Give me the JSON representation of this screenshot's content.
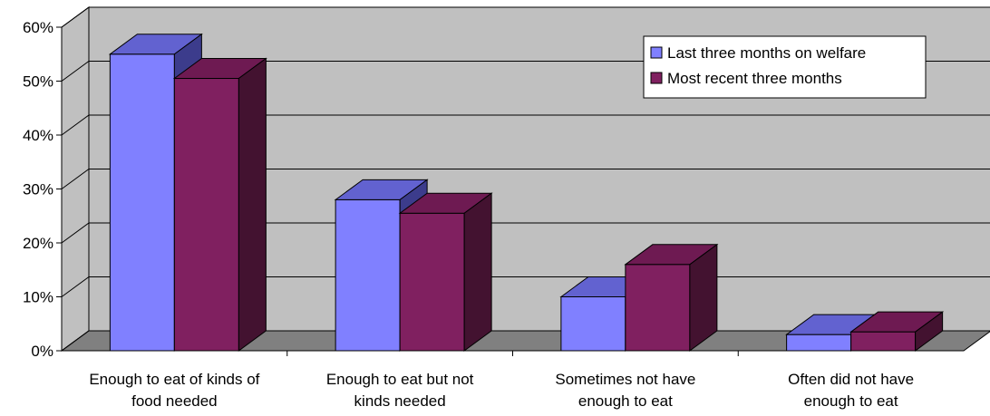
{
  "chart_data": {
    "type": "bar",
    "categories": [
      [
        "Enough to eat of kinds of",
        "food needed"
      ],
      [
        "Enough to eat but not",
        "kinds needed"
      ],
      [
        "Sometimes not have",
        "enough to eat"
      ],
      [
        "Often did not have",
        "enough to eat"
      ]
    ],
    "series": [
      {
        "name": "Last three months on welfare",
        "values": [
          55,
          28,
          10,
          3
        ],
        "colors": {
          "front": "#8080ff",
          "top": "#6262d0",
          "side": "#3c3c8c"
        }
      },
      {
        "name": "Most recent three months",
        "values": [
          50.5,
          25.5,
          16,
          3.5
        ],
        "colors": {
          "front": "#802060",
          "top": "#6e1a52",
          "side": "#431230"
        }
      }
    ],
    "ylim": [
      0,
      60
    ],
    "yticks": [
      "0%",
      "10%",
      "20%",
      "30%",
      "40%",
      "50%",
      "60%"
    ],
    "grid": true,
    "three_d": true,
    "legend_position": "top-right",
    "wall_color": "#c0c0c0",
    "floor_color": "#808080"
  }
}
